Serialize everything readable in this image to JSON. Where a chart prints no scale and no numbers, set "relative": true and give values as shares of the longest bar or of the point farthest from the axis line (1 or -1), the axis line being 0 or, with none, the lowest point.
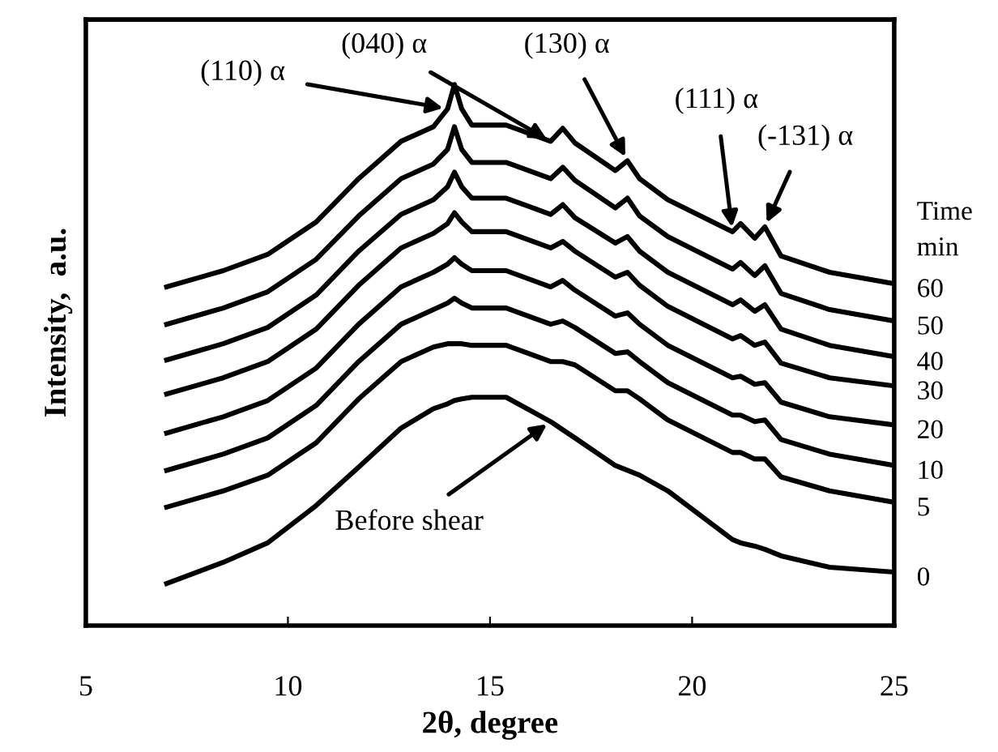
{
  "chart_data": {
    "type": "line",
    "relative": true,
    "xlabel": "2θ, degree",
    "ylabel": "Intensity,  a.u.",
    "legend_title": "Time\nmin",
    "xlim": [
      5,
      25
    ],
    "xticks": [
      5,
      10,
      15,
      20,
      25
    ],
    "grid": false,
    "legend": false,
    "tick_labels": "x",
    "line_style": "solid",
    "marker": "none",
    "x": [
      7,
      8.4,
      9.5,
      10.7,
      11.75,
      12.8,
      13.6,
      13.95,
      14.12,
      14.3,
      14.55,
      15.4,
      16.5,
      16.8,
      17.1,
      18.1,
      18.4,
      18.7,
      19.4,
      21.0,
      21.2,
      21.55,
      21.8,
      22.2,
      23.4,
      25
    ],
    "series": [
      {
        "name": "60",
        "color": "#000000",
        "values": [
          0.626,
          0.656,
          0.686,
          0.746,
          0.826,
          0.895,
          0.922,
          0.955,
          1.0,
          0.955,
          0.925,
          0.925,
          0.895,
          0.919,
          0.892,
          0.841,
          0.859,
          0.826,
          0.787,
          0.728,
          0.743,
          0.716,
          0.737,
          0.683,
          0.653,
          0.632
        ]
      },
      {
        "name": "50",
        "color": "#000000",
        "values": [
          0.557,
          0.587,
          0.617,
          0.677,
          0.757,
          0.826,
          0.853,
          0.88,
          0.922,
          0.88,
          0.856,
          0.856,
          0.826,
          0.847,
          0.823,
          0.772,
          0.79,
          0.757,
          0.719,
          0.659,
          0.671,
          0.647,
          0.665,
          0.614,
          0.584,
          0.563
        ]
      },
      {
        "name": "40",
        "color": "#000000",
        "values": [
          0.491,
          0.521,
          0.551,
          0.611,
          0.692,
          0.76,
          0.787,
          0.811,
          0.838,
          0.811,
          0.79,
          0.79,
          0.76,
          0.778,
          0.754,
          0.707,
          0.719,
          0.692,
          0.653,
          0.593,
          0.602,
          0.581,
          0.593,
          0.548,
          0.518,
          0.497
        ]
      },
      {
        "name": "30",
        "color": "#000000",
        "values": [
          0.428,
          0.458,
          0.488,
          0.548,
          0.629,
          0.698,
          0.725,
          0.743,
          0.763,
          0.746,
          0.728,
          0.728,
          0.698,
          0.71,
          0.692,
          0.644,
          0.653,
          0.629,
          0.59,
          0.53,
          0.536,
          0.518,
          0.524,
          0.485,
          0.458,
          0.443
        ]
      },
      {
        "name": "20",
        "color": "#000000",
        "values": [
          0.356,
          0.386,
          0.416,
          0.476,
          0.557,
          0.626,
          0.653,
          0.668,
          0.68,
          0.668,
          0.656,
          0.656,
          0.626,
          0.638,
          0.62,
          0.572,
          0.578,
          0.557,
          0.518,
          0.458,
          0.461,
          0.446,
          0.449,
          0.413,
          0.386,
          0.371
        ]
      },
      {
        "name": "10",
        "color": "#000000",
        "values": [
          0.287,
          0.317,
          0.347,
          0.407,
          0.488,
          0.557,
          0.584,
          0.596,
          0.605,
          0.596,
          0.587,
          0.587,
          0.557,
          0.563,
          0.551,
          0.503,
          0.506,
          0.488,
          0.449,
          0.389,
          0.389,
          0.377,
          0.38,
          0.344,
          0.317,
          0.296
        ]
      },
      {
        "name": "5",
        "color": "#000000",
        "values": [
          0.219,
          0.249,
          0.278,
          0.338,
          0.419,
          0.488,
          0.515,
          0.521,
          0.521,
          0.521,
          0.518,
          0.518,
          0.488,
          0.488,
          0.482,
          0.434,
          0.434,
          0.419,
          0.38,
          0.32,
          0.32,
          0.308,
          0.308,
          0.275,
          0.249,
          0.228
        ]
      },
      {
        "name": "0",
        "color": "#000000",
        "values": [
          0.078,
          0.117,
          0.153,
          0.222,
          0.293,
          0.365,
          0.401,
          0.41,
          0.416,
          0.419,
          0.422,
          0.422,
          0.377,
          0.362,
          0.347,
          0.296,
          0.287,
          0.278,
          0.249,
          0.159,
          0.153,
          0.147,
          0.141,
          0.129,
          0.108,
          0.099
        ]
      }
    ],
    "annotations": [
      {
        "text": "(110) α",
        "x": 13.95,
        "y": 0.955
      },
      {
        "text": "(040) α",
        "x": 16.5,
        "y": 0.895
      },
      {
        "text": "(130) α",
        "x": 18.4,
        "y": 0.859
      },
      {
        "text": "(111) α",
        "x": 21.0,
        "y": 0.728
      },
      {
        "text": "(-131) α",
        "x": 21.8,
        "y": 0.737
      },
      {
        "text": "Before shear",
        "x": 16.5,
        "y": 0.377
      }
    ]
  }
}
